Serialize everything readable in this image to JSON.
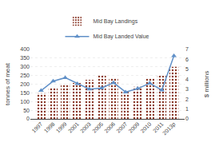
{
  "chart_data": {
    "type": "bar",
    "categories": [
      "1997",
      "1998",
      "1999",
      "2001",
      "2003",
      "2005",
      "2006",
      "2007",
      "2009",
      "2010",
      "2011",
      "2013p"
    ],
    "series": [
      {
        "name": "Mid Bay Landings",
        "type": "bar",
        "color": "#c87060",
        "values": [
          148,
          182,
          200,
          207,
          225,
          250,
          235,
          162,
          185,
          233,
          248,
          300
        ]
      },
      {
        "name": "Mid Bay Landed Value",
        "type": "line",
        "axis": "y2",
        "color": "#6090c8",
        "marker": "triangle",
        "values": [
          2.85,
          3.8,
          4.15,
          3.55,
          3.0,
          3.1,
          3.65,
          2.7,
          3.05,
          3.6,
          2.9,
          6.35
        ]
      }
    ],
    "ylabel": "tonnes of meat",
    "y2label": "$ millions",
    "ylim": [
      0,
      400
    ],
    "yticks": [
      0,
      50,
      100,
      150,
      200,
      250,
      300,
      350,
      400
    ],
    "y2lim": [
      0,
      7.0
    ],
    "y2ticks": [
      0,
      1,
      2,
      3,
      4,
      5,
      6,
      7
    ],
    "grid": true,
    "legend": "top"
  }
}
